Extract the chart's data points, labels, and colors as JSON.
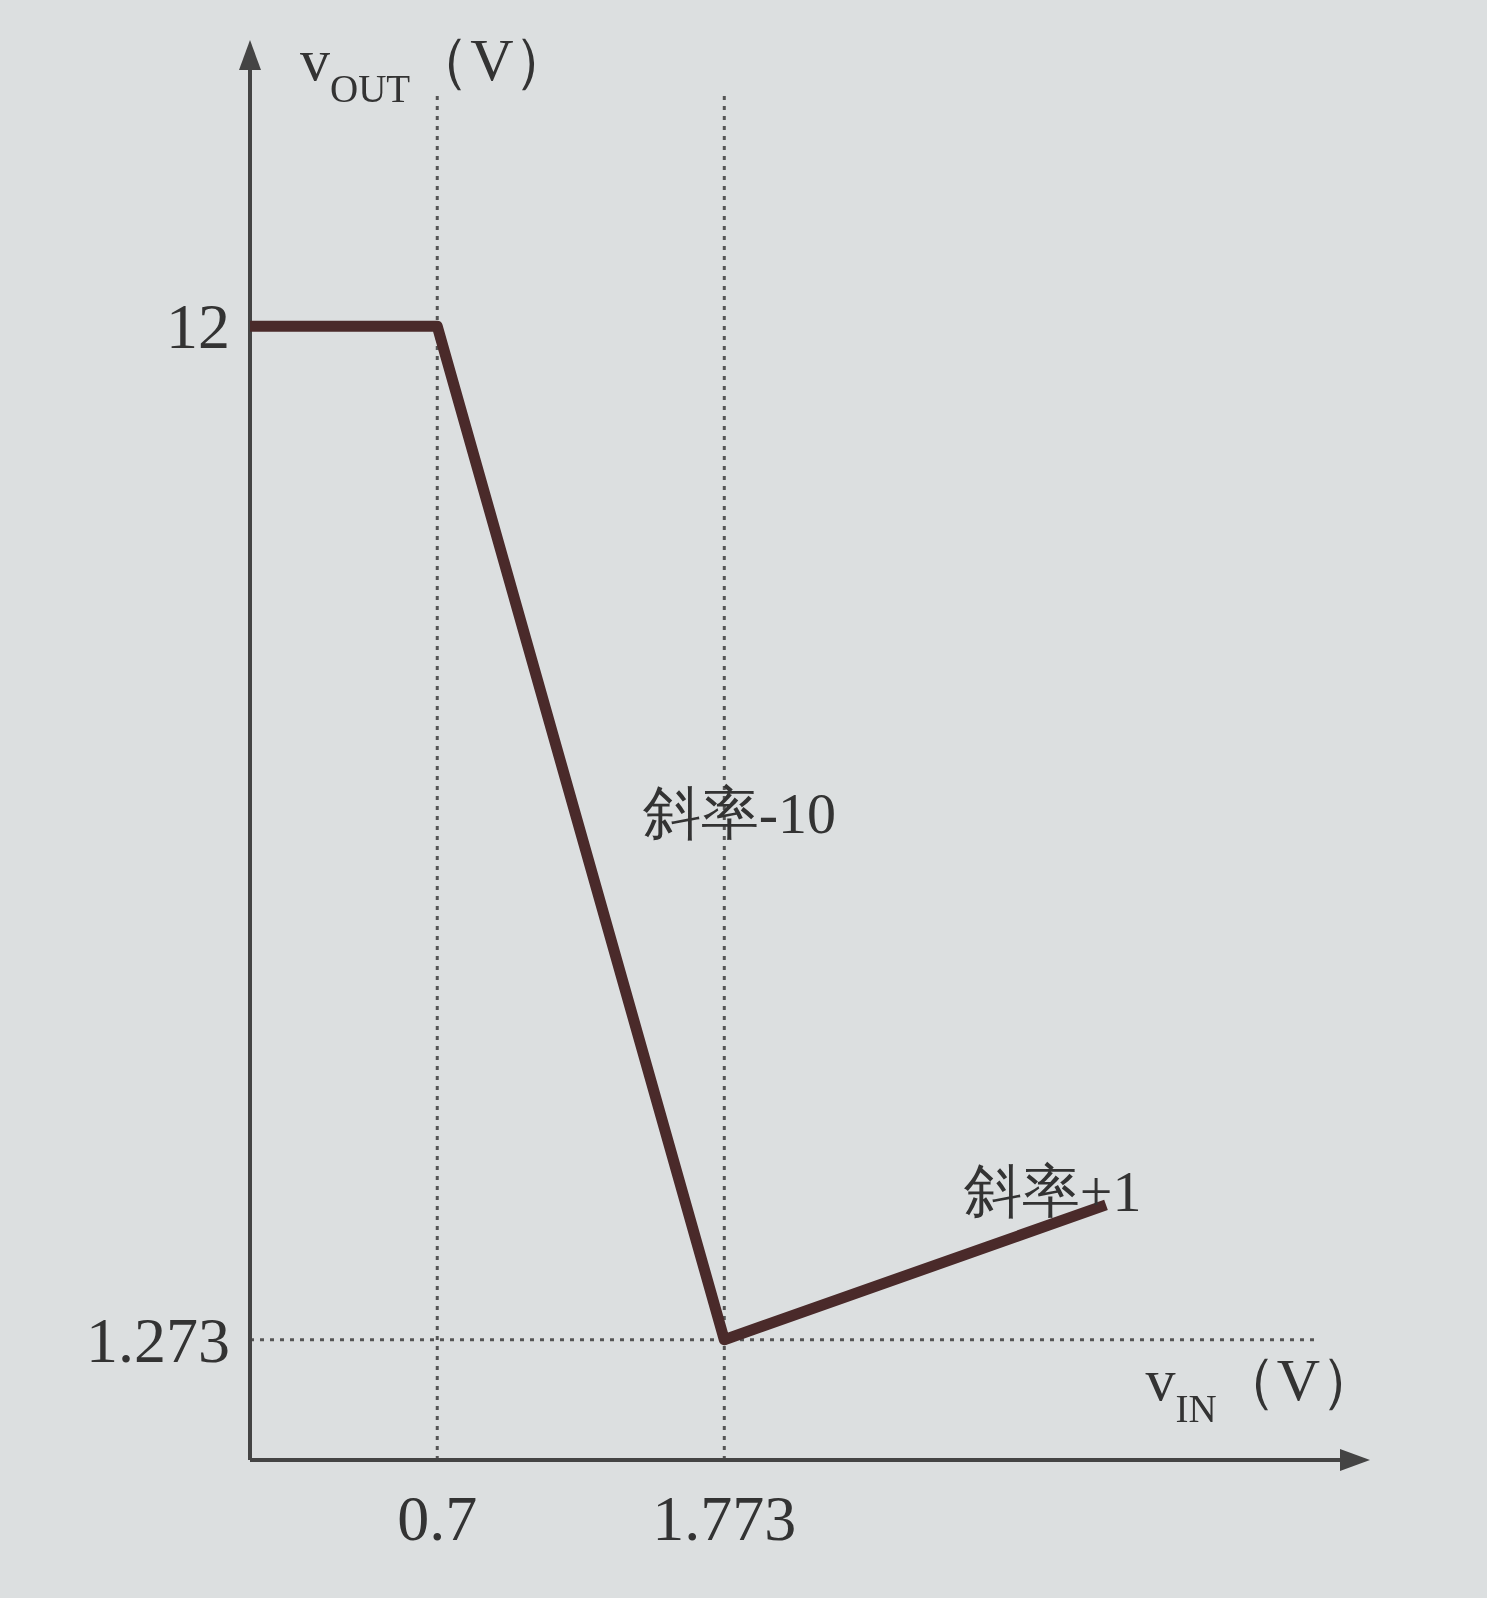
{
  "chart_data": {
    "type": "line",
    "xlabel": "v$_{IN}$（V）",
    "ylabel": "v$_{OUT}$（V）",
    "x": [
      0,
      0.7,
      1.773,
      3.2
    ],
    "series": [
      {
        "color": "#4a2a2a",
        "values": [
          12,
          12,
          1.273,
          2.7
        ]
      }
    ],
    "xlim": [
      0,
      4
    ],
    "ylim": [
      0,
      14.5
    ],
    "xticks": [
      0.7,
      1.773
    ],
    "yticks": [
      1.273,
      12
    ],
    "ref_lines": [
      {
        "axis": "x",
        "value": 0.7,
        "line_style": "dotted"
      },
      {
        "axis": "x",
        "value": 1.773,
        "line_style": "dotted"
      },
      {
        "axis": "y",
        "value": 1.273,
        "line_style": "dotted"
      }
    ],
    "annotations": [
      {
        "text": "斜率-10",
        "x": 1.3,
        "y": 6.0
      },
      {
        "text": "斜率+1",
        "x": 2.5,
        "y": 2.0
      }
    ],
    "grid": false,
    "marker": "none",
    "line_style": "solid"
  }
}
